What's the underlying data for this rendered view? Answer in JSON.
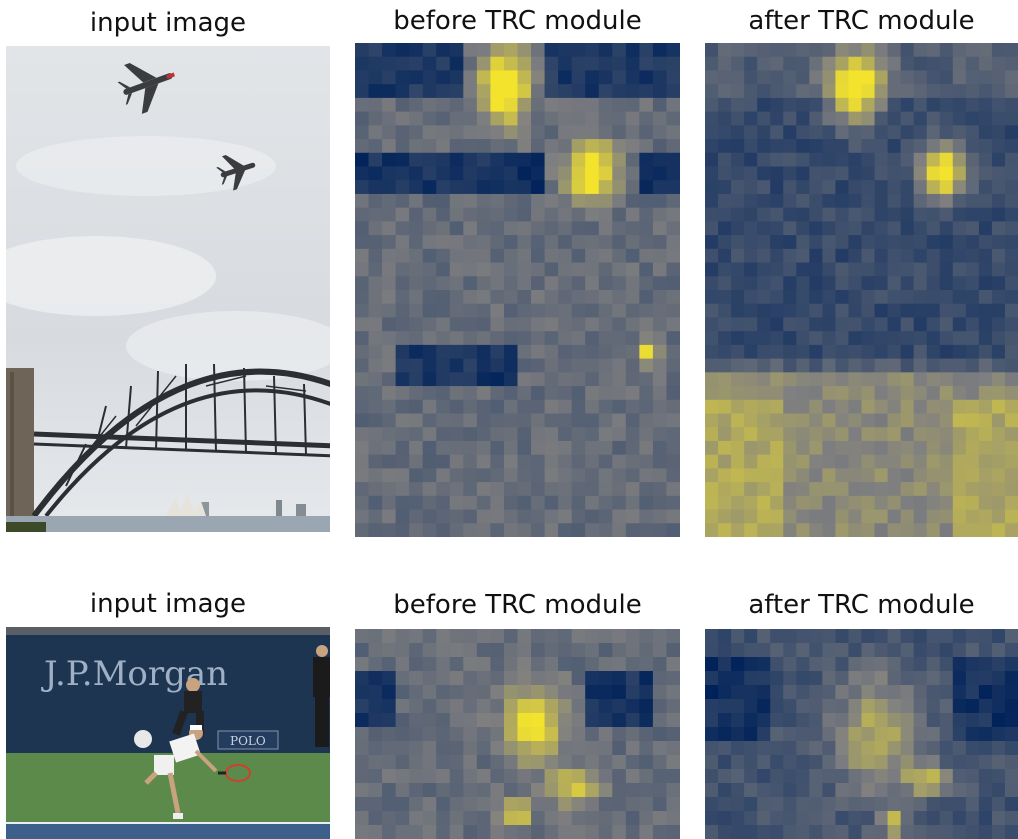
{
  "rows": [
    {
      "titles": [
        "input image",
        "before TRC module",
        "after TRC module"
      ],
      "photo": {
        "scene": "two airplanes over arch bridge",
        "colors": {
          "sky_top": "#dcdfe2",
          "sky_bottom": "#e9ebee",
          "steel": "#2b2f33",
          "water": "#9aa7b3"
        }
      },
      "heatmaps": {
        "before": {
          "hotspots": [
            "plane-1",
            "plane-2",
            "bridge-light"
          ]
        },
        "after": {
          "hotspots": [
            "plane-1",
            "plane-2",
            "bridge"
          ]
        }
      }
    },
    {
      "titles": [
        "input image",
        "before TRC module",
        "after TRC module"
      ],
      "photo": {
        "scene": "tennis player on court",
        "wall_text": "J.P.Morgan",
        "board_text": "POLO",
        "colors": {
          "wall": "#1e3552",
          "court": "#5c8a4a",
          "baseline": "#3d5f8c"
        }
      },
      "heatmaps": {
        "before": {
          "hotspots": [
            "player-torso",
            "player-ball"
          ]
        },
        "after": {
          "hotspots": [
            "player-legs",
            "player-arm"
          ]
        }
      }
    }
  ],
  "colormap": {
    "low": "#00225a",
    "mid": "#7f7f80",
    "high": "#f4e32d"
  }
}
